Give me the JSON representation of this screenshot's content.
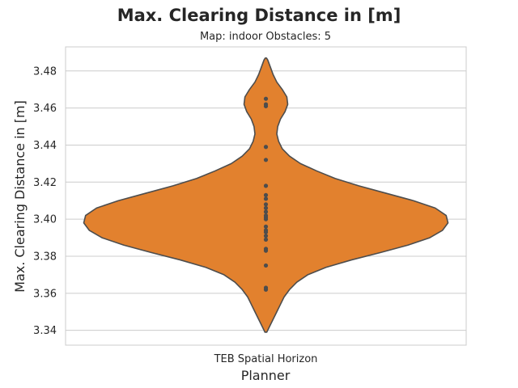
{
  "chart_data": {
    "type": "violin",
    "title": "Max. Clearing Distance in [m]",
    "subtitle": "Map: indoor Obstacles: 5",
    "xlabel": "Planner",
    "ylabel": "Max. Clearing Distance in [m]",
    "categories": [
      "TEB Spatial Horizon"
    ],
    "ylim": [
      3.332,
      3.493
    ],
    "yticks": [
      3.34,
      3.36,
      3.38,
      3.4,
      3.42,
      3.44,
      3.46,
      3.48
    ],
    "grid": true,
    "colors": {
      "violin_fill": "#e2812e",
      "outline": "#4d4d4d",
      "points": "#4d4d4d",
      "grid": "#cccccc",
      "frame": "#cccccc"
    },
    "density": {
      "y_min": 3.339,
      "y_max": 3.487,
      "profile": [
        [
          3.339,
          0.005
        ],
        [
          3.342,
          0.02
        ],
        [
          3.346,
          0.04
        ],
        [
          3.35,
          0.06
        ],
        [
          3.354,
          0.08
        ],
        [
          3.358,
          0.1
        ],
        [
          3.362,
          0.13
        ],
        [
          3.366,
          0.17
        ],
        [
          3.37,
          0.23
        ],
        [
          3.374,
          0.33
        ],
        [
          3.378,
          0.47
        ],
        [
          3.382,
          0.63
        ],
        [
          3.386,
          0.78
        ],
        [
          3.39,
          0.9
        ],
        [
          3.394,
          0.97
        ],
        [
          3.398,
          1.0
        ],
        [
          3.402,
          0.99
        ],
        [
          3.406,
          0.93
        ],
        [
          3.41,
          0.81
        ],
        [
          3.414,
          0.66
        ],
        [
          3.418,
          0.51
        ],
        [
          3.422,
          0.38
        ],
        [
          3.426,
          0.28
        ],
        [
          3.43,
          0.19
        ],
        [
          3.434,
          0.13
        ],
        [
          3.438,
          0.09
        ],
        [
          3.442,
          0.07
        ],
        [
          3.446,
          0.06
        ],
        [
          3.45,
          0.065
        ],
        [
          3.454,
          0.08
        ],
        [
          3.458,
          0.105
        ],
        [
          3.462,
          0.12
        ],
        [
          3.466,
          0.115
        ],
        [
          3.47,
          0.09
        ],
        [
          3.474,
          0.06
        ],
        [
          3.478,
          0.04
        ],
        [
          3.482,
          0.025
        ],
        [
          3.486,
          0.01
        ],
        [
          3.487,
          0.003
        ]
      ]
    },
    "points": [
      3.362,
      3.363,
      3.375,
      3.383,
      3.384,
      3.389,
      3.391,
      3.393,
      3.394,
      3.396,
      3.4,
      3.401,
      3.402,
      3.404,
      3.406,
      3.408,
      3.411,
      3.413,
      3.418,
      3.432,
      3.439,
      3.461,
      3.462,
      3.465
    ]
  }
}
